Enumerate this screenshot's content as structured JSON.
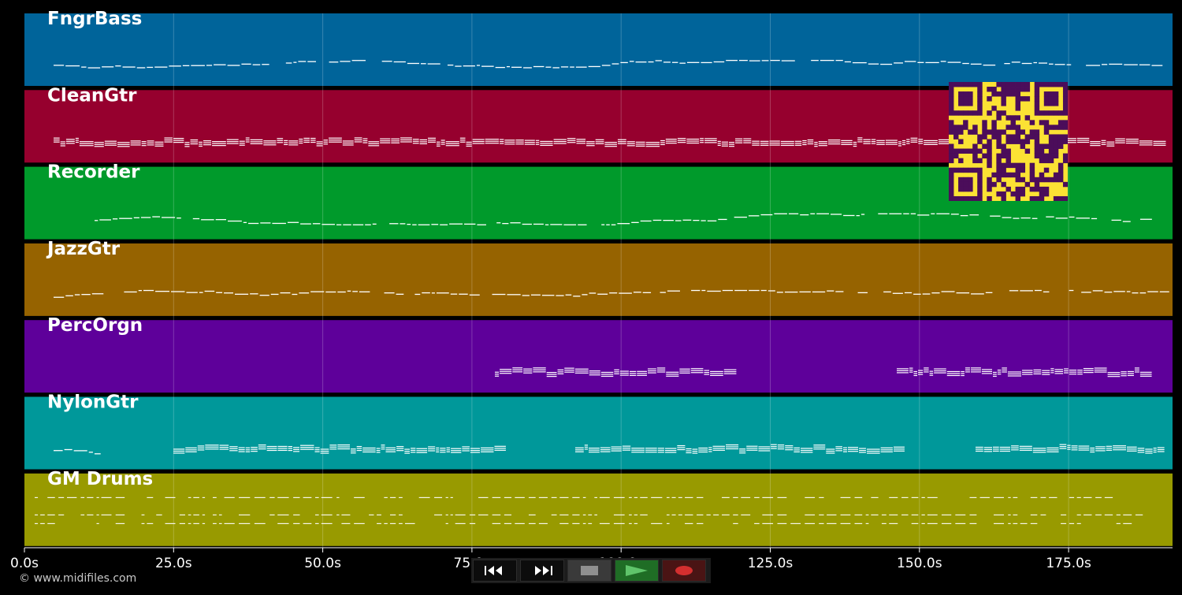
{
  "tracks": [
    {
      "name": "FngrBass",
      "color": "#00649a"
    },
    {
      "name": "CleanGtr",
      "color": "#96002e"
    },
    {
      "name": "Recorder",
      "color": "#009a2b"
    },
    {
      "name": "JazzGtr",
      "color": "#966300"
    },
    {
      "name": "PercOrgn",
      "color": "#5e009a"
    },
    {
      "name": "NylonGtr",
      "color": "#00989a"
    },
    {
      "name": "GM Drums",
      "color": "#989a00"
    }
  ],
  "timeline": {
    "ticks": [
      "0.0s",
      "25.0s",
      "50.0s",
      "75.0s",
      "100.0s",
      "125.0s",
      "150.0s",
      "175.0s"
    ]
  },
  "transport": {
    "rewind_icon": "rewind-icon",
    "fast_forward_icon": "fast-forward-icon",
    "stop_icon": "stop-icon",
    "play_icon": "play-icon",
    "record_icon": "record-icon"
  },
  "colors": {
    "background": "#000000",
    "qr_yellow": "#fbe234",
    "qr_purple": "#4b0d5a",
    "note_white": "#ffffff"
  },
  "copyright": "© www.midifiles.com"
}
